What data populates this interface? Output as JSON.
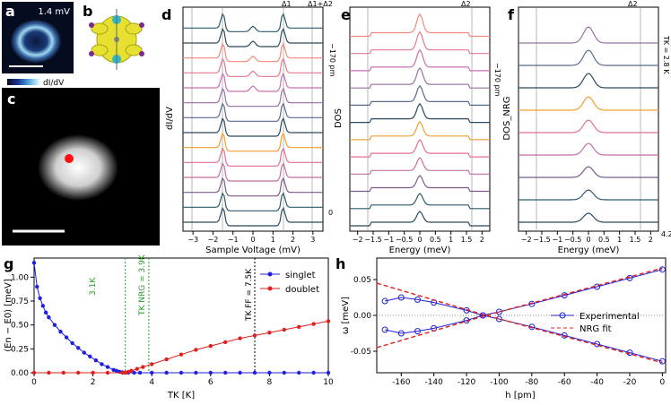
{
  "panels": {
    "a": {
      "letter": "a",
      "scale_text": "1.4 mV",
      "colorbar_label": "dI/dV"
    },
    "b": {
      "letter": "b"
    },
    "c": {
      "letter": "c"
    },
    "d": {
      "letter": "d",
      "ylabel": "dI/dV",
      "xlabel": "Sample Voltage (mV)",
      "xticks": [
        "−3",
        "−2",
        "−1",
        "0",
        "1",
        "2",
        "3"
      ],
      "top_labels": [
        "Δ1",
        "Δ1+Δ2"
      ],
      "right_label": "−170 pm",
      "right_zero": "0"
    },
    "e": {
      "letter": "e",
      "ylabel": "DOS",
      "xlabel": "Energy (meV)",
      "xticks": [
        "−2",
        "−1.5",
        "−1",
        "−0.5",
        "0",
        "0.5",
        "1",
        "1.5",
        "2"
      ],
      "top_label": "Δ2",
      "right_label": "−170 pm"
    },
    "f": {
      "letter": "f",
      "ylabel": "DOS_NRG",
      "xlabel": "Energy (meV)",
      "xticks": [
        "−2",
        "−1.5",
        "−1",
        "−0.5",
        "0",
        "0.5",
        "1",
        "1.5",
        "2"
      ],
      "top_label": "Δ2",
      "right_label": "TK = 2.8 K",
      "right_bottom": "4.2"
    },
    "g": {
      "letter": "g",
      "ylabel": "(En − E0) [meV]",
      "xlabel": "TK [K]",
      "legend": [
        "singlet",
        "doublet"
      ],
      "annotations": [
        "3.1K",
        "TK NRG = 3.9K",
        "TK FF = 7.5K"
      ]
    },
    "h": {
      "letter": "h",
      "ylabel": "ω [meV]",
      "xlabel": "h [pm]",
      "legend": [
        "Experimental",
        "NRG fit"
      ]
    }
  },
  "spectra_colors": [
    "#2b4a5e",
    "#2d5a6a",
    "#7b5a8c",
    "#c06fa3",
    "#e07090",
    "#f0a030",
    "#2b4a5e",
    "#5a6a8a",
    "#9a6fa3",
    "#c86fb0",
    "#e07a90",
    "#f08a7a"
  ],
  "chart_data": [
    {
      "panel": "g",
      "type": "line",
      "title": "",
      "xlabel": "T_K [K]",
      "ylabel": "(E_n − E_0) [meV]",
      "xlim": [
        0,
        10
      ],
      "ylim": [
        0,
        1.2
      ],
      "xticks": [
        0,
        2,
        4,
        6,
        8,
        10
      ],
      "yticks": [
        0.0,
        0.25,
        0.5,
        0.75,
        1.0
      ],
      "series": [
        {
          "name": "singlet",
          "color": "#1f1fe0",
          "x": [
            0,
            0.1,
            0.2,
            0.3,
            0.4,
            0.5,
            0.7,
            0.9,
            1.1,
            1.3,
            1.5,
            1.7,
            1.9,
            2.1,
            2.3,
            2.5,
            2.7,
            2.8,
            2.9,
            3.0,
            3.1,
            3.2,
            3.4,
            3.6,
            4.0,
            4.5,
            5.0,
            5.5,
            6.0,
            6.5,
            7.0,
            7.5,
            8.0,
            8.5,
            9.0,
            9.5,
            10.0
          ],
          "y": [
            1.15,
            0.9,
            0.78,
            0.7,
            0.63,
            0.58,
            0.5,
            0.43,
            0.37,
            0.31,
            0.26,
            0.21,
            0.17,
            0.13,
            0.09,
            0.06,
            0.03,
            0.02,
            0.01,
            0.005,
            0,
            0,
            0,
            0,
            0,
            0,
            0,
            0,
            0,
            0,
            0,
            0,
            0,
            0,
            0,
            0,
            0
          ]
        },
        {
          "name": "doublet",
          "color": "#e01f1f",
          "x": [
            0,
            0.5,
            1,
            1.5,
            2,
            2.5,
            3.0,
            3.1,
            3.2,
            3.3,
            3.5,
            3.7,
            4.0,
            4.5,
            5.0,
            5.5,
            6.0,
            6.5,
            7.0,
            7.5,
            8.0,
            8.5,
            9.0,
            9.5,
            10.0
          ],
          "y": [
            0,
            0,
            0,
            0,
            0,
            0,
            0,
            0,
            0.01,
            0.02,
            0.04,
            0.06,
            0.09,
            0.14,
            0.19,
            0.24,
            0.28,
            0.32,
            0.36,
            0.39,
            0.42,
            0.45,
            0.48,
            0.51,
            0.54
          ]
        }
      ],
      "vlines": [
        {
          "x": 3.1,
          "label": "3.1K",
          "color": "#2a9a2a"
        },
        {
          "x": 3.9,
          "label": "T_K^NRG = 3.9K",
          "color": "#2a9a2a"
        },
        {
          "x": 7.5,
          "label": "T_K^FF = 7.5K",
          "color": "#000000"
        }
      ]
    },
    {
      "panel": "h",
      "type": "line",
      "title": "",
      "xlabel": "h [pm]",
      "ylabel": "ω [meV]",
      "xlim": [
        -175,
        2
      ],
      "ylim": [
        -0.08,
        0.08
      ],
      "xticks": [
        -160,
        -140,
        -120,
        -100,
        -80,
        -60,
        -40,
        -20,
        0
      ],
      "yticks": [
        -0.05,
        0.0,
        0.05
      ],
      "series": [
        {
          "name": "Experimental",
          "color": "#2020d0",
          "x": [
            -170,
            -160,
            -150,
            -140,
            -120,
            -110,
            -100,
            -80,
            -60,
            -40,
            -20,
            0
          ],
          "y": [
            0.02,
            0.025,
            0.022,
            0.018,
            0.007,
            0,
            0.005,
            0.016,
            0.028,
            0.04,
            0.052,
            0.064
          ]
        },
        {
          "name": "Experimental_lower",
          "color": "#2020d0",
          "x": [
            -170,
            -160,
            -150,
            -140,
            -120,
            -110,
            -100,
            -80,
            -60,
            -40,
            -20,
            0
          ],
          "y": [
            -0.02,
            -0.025,
            -0.022,
            -0.018,
            -0.007,
            0,
            -0.005,
            -0.016,
            -0.028,
            -0.04,
            -0.052,
            -0.064
          ]
        },
        {
          "name": "NRG fit",
          "color": "#e02020",
          "x": [
            -175,
            -108,
            0
          ],
          "y": [
            0.045,
            0,
            0.066
          ]
        },
        {
          "name": "NRG fit lower",
          "color": "#e02020",
          "x": [
            -175,
            -108,
            0
          ],
          "y": [
            -0.045,
            0,
            -0.066
          ]
        }
      ]
    }
  ]
}
